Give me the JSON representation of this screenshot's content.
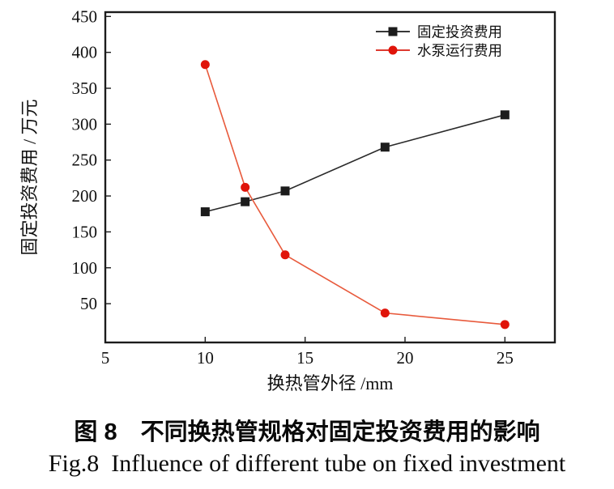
{
  "captions": {
    "chinese": "图 8　不同换热管规格对固定投资费用的影响",
    "english": "Fig.8  Influence of different tube on fixed investment"
  },
  "chart_data": {
    "type": "line",
    "x": [
      10,
      12,
      14,
      19,
      25
    ],
    "series": [
      {
        "key": "fixed-investment",
        "name": "固定投资费用",
        "values": [
          178,
          192,
          207,
          268,
          313
        ],
        "marker": "square",
        "marker_color": "#1c1c1c",
        "line_color": "#2a2a2a"
      },
      {
        "key": "pump-operation",
        "name": "水泵运行费用",
        "values": [
          383,
          212,
          118,
          37,
          21
        ],
        "marker": "circle",
        "marker_color": "#e0140a",
        "line_color": "#e85a3c"
      }
    ],
    "xlabel": "换热管外径 /mm",
    "ylabel": "固定投资费用 / 万元",
    "xlim": [
      5,
      27.5
    ],
    "ylim": [
      -4,
      456
    ],
    "x_ticks": [
      5,
      10,
      15,
      20,
      25
    ],
    "y_ticks": [
      50,
      100,
      150,
      200,
      250,
      300,
      350,
      400,
      450
    ],
    "grid": false,
    "legend_position": "top-right",
    "frame_color": "#1c1c1c",
    "text_color": "#111111"
  }
}
